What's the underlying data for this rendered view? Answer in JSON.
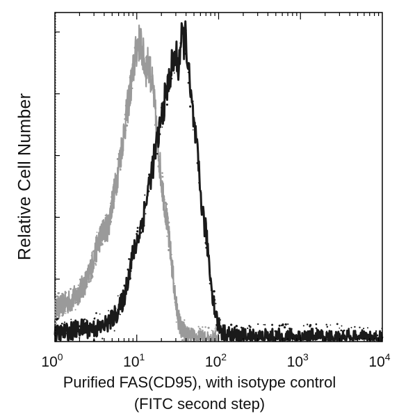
{
  "chart_data": {
    "type": "line",
    "title": "",
    "xlabel_line1": "Purified FAS(CD95), with isotype control",
    "xlabel_line2": "(FITC second step)",
    "ylabel": "Relative Cell Number",
    "x_scale": "log",
    "xlim": [
      1,
      10000
    ],
    "ylim": [
      0,
      100
    ],
    "grid": false,
    "legend": "none",
    "x_ticks": [
      {
        "base": "10",
        "exp": "0",
        "value": 1
      },
      {
        "base": "10",
        "exp": "1",
        "value": 10
      },
      {
        "base": "10",
        "exp": "2",
        "value": 100
      },
      {
        "base": "10",
        "exp": "3",
        "value": 1000
      },
      {
        "base": "10",
        "exp": "4",
        "value": 10000
      }
    ],
    "series": [
      {
        "style": "isotype-control",
        "color": "#9a9a9a",
        "x": [
          1,
          1.3,
          1.6,
          2,
          2.5,
          3,
          3.5,
          4,
          4.5,
          5,
          5.5,
          6,
          7,
          8,
          9,
          10,
          11,
          12,
          13,
          14,
          15,
          16,
          17,
          18,
          19,
          20,
          22,
          24,
          26,
          28,
          30,
          33,
          36,
          40,
          45,
          50,
          60,
          80,
          100
        ],
        "y": [
          10,
          12,
          13,
          16,
          20,
          27,
          33,
          36,
          37,
          45,
          50,
          56,
          68,
          78,
          87,
          95,
          97,
          92,
          88,
          90,
          85,
          80,
          72,
          64,
          58,
          52,
          44,
          36,
          28,
          20,
          12,
          6,
          3,
          1.8,
          0.8,
          0.3,
          0,
          0,
          0
        ]
      },
      {
        "style": "fas-cd95",
        "color": "#1a1a1a",
        "x": [
          1,
          1.2,
          1.5,
          2,
          2.5,
          3,
          3.5,
          4,
          5,
          6,
          7,
          8,
          9,
          10,
          12,
          14,
          16,
          18,
          20,
          22,
          24,
          26,
          28,
          30,
          32,
          34,
          36,
          38,
          40,
          42,
          45,
          50,
          55,
          60,
          65,
          70,
          75,
          80,
          90,
          100,
          110,
          120,
          150,
          200,
          300,
          500,
          1000,
          2000,
          5000,
          10000
        ],
        "y": [
          2,
          2.5,
          3,
          4,
          4,
          4,
          4,
          5,
          7,
          10,
          14,
          22,
          28,
          32,
          40,
          50,
          58,
          65,
          72,
          78,
          82,
          88,
          90,
          93,
          88,
          95,
          98,
          97,
          99,
          90,
          80,
          70,
          60,
          48,
          40,
          35,
          28,
          20,
          10,
          5,
          3,
          2,
          1.5,
          1.2,
          1,
          1,
          1,
          0.8,
          0.5,
          0.3
        ]
      }
    ]
  }
}
